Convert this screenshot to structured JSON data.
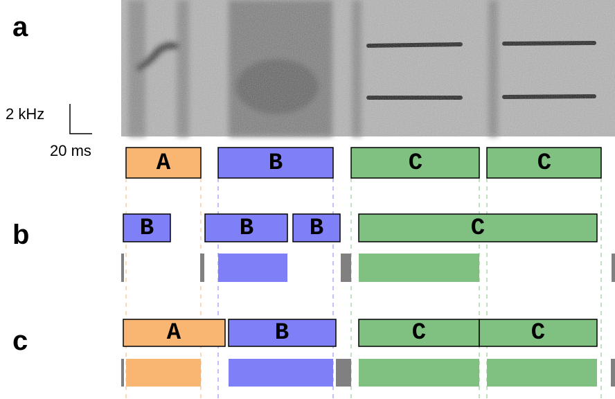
{
  "panels": [
    "a",
    "b",
    "c"
  ],
  "scale": {
    "frequency": "2 kHz",
    "time": "20 ms"
  },
  "rows": [
    {
      "segments": [
        "A",
        "B",
        "C",
        "C"
      ]
    },
    {
      "segments": [
        "B",
        "B",
        "B",
        "C"
      ]
    },
    {
      "segments": [
        "A",
        "B",
        "C",
        "C"
      ]
    }
  ]
}
